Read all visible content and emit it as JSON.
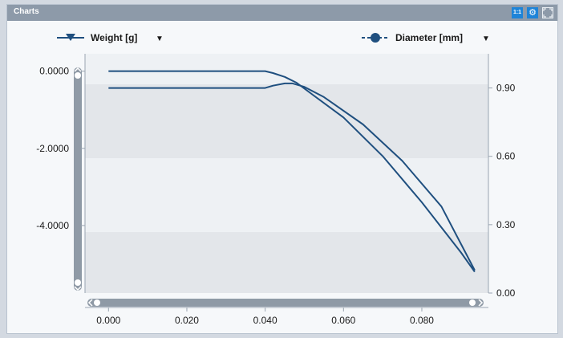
{
  "window": {
    "title": "Charts"
  },
  "toolbar": {
    "one_to_one_label": "1:1"
  },
  "legend": {
    "left": {
      "label": "Weight [g]",
      "dropdown": "▼"
    },
    "right": {
      "label": "Diameter [mm]",
      "dropdown": "▼"
    }
  },
  "colors": {
    "series": "#1f4f7f",
    "band_dark": "#e3e6ea",
    "band_light": "#eef1f4",
    "titlebar": "#8d9aa9",
    "accent": "#1e84d8"
  },
  "chart_data": {
    "type": "line",
    "grid": false,
    "legend_placement": "top",
    "x_ticks": [
      "0.000",
      "0.020",
      "0.040",
      "0.060",
      "0.080"
    ],
    "x_tick_values": [
      0.0,
      0.02,
      0.04,
      0.06,
      0.08
    ],
    "xlim": [
      -0.006,
      0.097
    ],
    "y_left_ticks": [
      "0.0000",
      "-2.0000",
      "-4.0000"
    ],
    "y_left_tick_values": [
      0,
      -2,
      -4
    ],
    "y_left_lim": [
      -5.75,
      0.45
    ],
    "y_right_ticks": [
      "0.90",
      "0.60",
      "0.30",
      "0.00"
    ],
    "y_right_tick_values": [
      0.9,
      0.6,
      0.3,
      0.0
    ],
    "y_right_lim": [
      0.0,
      1.05
    ],
    "series": [
      {
        "name": "Weight [g]",
        "axis": "left",
        "marker": "triangle-down",
        "x": [
          0.0,
          0.02,
          0.04,
          0.042,
          0.045,
          0.048,
          0.052,
          0.06,
          0.07,
          0.08,
          0.09,
          0.0935
        ],
        "y": [
          0.0,
          0.0,
          0.0,
          -0.05,
          -0.15,
          -0.3,
          -0.6,
          -1.2,
          -2.2,
          -3.4,
          -4.7,
          -5.2
        ]
      },
      {
        "name": "Diameter [mm]",
        "axis": "right",
        "marker": "circle",
        "dashed": true,
        "x": [
          0.0,
          0.02,
          0.04,
          0.042,
          0.045,
          0.047,
          0.05,
          0.055,
          0.065,
          0.075,
          0.085,
          0.0935
        ],
        "y": [
          0.9,
          0.9,
          0.9,
          0.91,
          0.92,
          0.92,
          0.905,
          0.86,
          0.74,
          0.58,
          0.38,
          0.1
        ]
      }
    ]
  }
}
